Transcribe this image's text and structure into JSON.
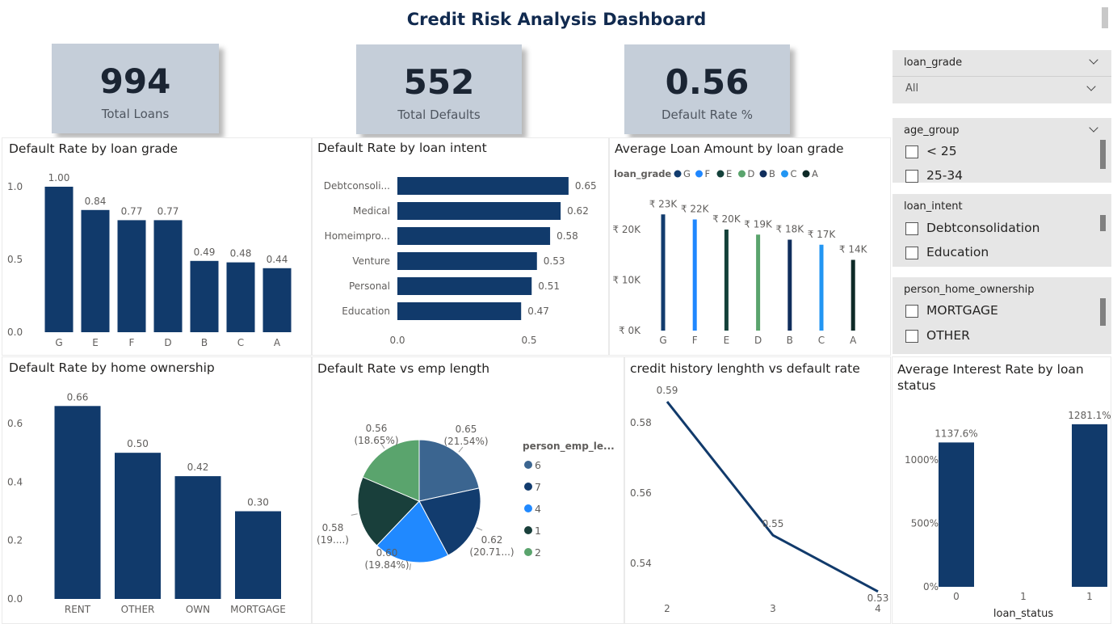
{
  "dashboard": {
    "title": "Credit Risk Analysis Dashboard"
  },
  "kpis": [
    {
      "value": "994",
      "label": "Total Loans"
    },
    {
      "value": "552",
      "label": "Total Defaults"
    },
    {
      "value": "0.56",
      "label": "Default Rate %"
    }
  ],
  "slicers": {
    "loan_grade": {
      "title": "loan_grade",
      "selected": "All"
    },
    "age_group": {
      "title": "age_group",
      "options": [
        "< 25",
        "25-34"
      ]
    },
    "loan_intent": {
      "title": "loan_intent",
      "options": [
        "Debtconsolidation",
        "Education"
      ]
    },
    "home_ownership": {
      "title": "person_home_ownership",
      "options": [
        "MORTGAGE",
        "OTHER"
      ]
    }
  },
  "colors": {
    "navy": "#113a6b",
    "kpi_bg": "#c5ced9",
    "slicer_bg": "#e6e6e6"
  },
  "chart_data": [
    {
      "id": "grade",
      "type": "bar",
      "title": "Default Rate by loan grade",
      "categories": [
        "G",
        "E",
        "F",
        "D",
        "B",
        "C",
        "A"
      ],
      "values": [
        1.0,
        0.84,
        0.77,
        0.77,
        0.49,
        0.48,
        0.44
      ],
      "data_labels": [
        "1.00",
        "0.84",
        "0.77",
        "0.77",
        "0.49",
        "0.48",
        "0.44"
      ],
      "yticks": [
        "0.0",
        "0.5",
        "1.0"
      ],
      "ylim": [
        0,
        1.0
      ]
    },
    {
      "id": "intent",
      "type": "bar",
      "orientation": "horizontal",
      "title": "Default Rate by loan intent",
      "categories": [
        "Debtconsoli...",
        "Medical",
        "Homeimpro...",
        "Venture",
        "Personal",
        "Education"
      ],
      "values": [
        0.65,
        0.62,
        0.58,
        0.53,
        0.51,
        0.47
      ],
      "data_labels": [
        "0.65",
        "0.62",
        "0.58",
        "0.53",
        "0.51",
        "0.47"
      ],
      "xticks": [
        "0.0",
        "0.5"
      ],
      "xlim": [
        0,
        0.5
      ]
    },
    {
      "id": "amount",
      "type": "bar",
      "title": "Average Loan Amount by loan grade",
      "legend_title": "loan_grade",
      "categories": [
        "G",
        "F",
        "E",
        "D",
        "B",
        "C",
        "A"
      ],
      "values": [
        23000,
        22000,
        20000,
        19000,
        18000,
        17000,
        14000
      ],
      "data_labels": [
        "₹ 23K",
        "₹ 22K",
        "₹ 20K",
        "₹ 19K",
        "₹ 18K",
        "₹ 17K",
        "₹ 14K"
      ],
      "colors": [
        "#123c6e",
        "#1f87ff",
        "#14413a",
        "#5aa46d",
        "#102e5c",
        "#2296f3",
        "#0e2a27"
      ],
      "legend": [
        "G",
        "F",
        "E",
        "D",
        "B",
        "C",
        "A"
      ],
      "yticks": [
        "₹ 0K",
        "₹ 10K",
        "₹ 20K"
      ],
      "ylim": [
        0,
        20000
      ]
    },
    {
      "id": "home",
      "type": "bar",
      "title": "Default Rate by home ownership",
      "categories": [
        "RENT",
        "OTHER",
        "OWN",
        "MORTGAGE"
      ],
      "values": [
        0.66,
        0.5,
        0.42,
        0.3
      ],
      "data_labels": [
        "0.66",
        "0.50",
        "0.42",
        "0.30"
      ],
      "yticks": [
        "0.0",
        "0.2",
        "0.4",
        "0.6"
      ],
      "ylim": [
        0,
        0.6
      ]
    },
    {
      "id": "emp",
      "type": "pie",
      "title": "Default Rate vs emp length",
      "legend_title": "person_emp_le...",
      "slices": [
        {
          "name": "6",
          "value": 0.65,
          "label": "0.65",
          "pct": "(21.54%)",
          "color": "#3b6590"
        },
        {
          "name": "7",
          "value": 0.62,
          "label": "0.62",
          "pct": "(20.71...)",
          "color": "#123c6e"
        },
        {
          "name": "4",
          "value": 0.6,
          "label": "0.60",
          "pct": "(19.84%)",
          "color": "#2089ff"
        },
        {
          "name": "1",
          "value": 0.58,
          "label": "0.58",
          "pct": "(19....)",
          "color": "#193f3b"
        },
        {
          "name": "2",
          "value": 0.56,
          "label": "0.56",
          "pct": "(18.65%)",
          "color": "#5aa46d"
        }
      ]
    },
    {
      "id": "credit",
      "type": "line",
      "title": "credit history lenghth vs default rate",
      "x": [
        "2",
        "3",
        "4"
      ],
      "y": [
        0.586,
        0.548,
        0.532
      ],
      "data_labels": [
        "0.59",
        "0.55",
        "0.53"
      ],
      "yticks": [
        "0.54",
        "0.56",
        "0.58"
      ],
      "ylim": [
        0.54,
        0.58
      ]
    },
    {
      "id": "interest",
      "type": "bar",
      "title": "Average Interest Rate by loan status",
      "xlabel": "loan_status",
      "categories": [
        "0",
        "1"
      ],
      "values": [
        1137.6,
        1281.1
      ],
      "data_labels": [
        "1137.6%",
        "1281.1%"
      ],
      "yticks": [
        "0%",
        "500%",
        "1000%"
      ],
      "ylim": [
        0,
        1000
      ]
    }
  ]
}
